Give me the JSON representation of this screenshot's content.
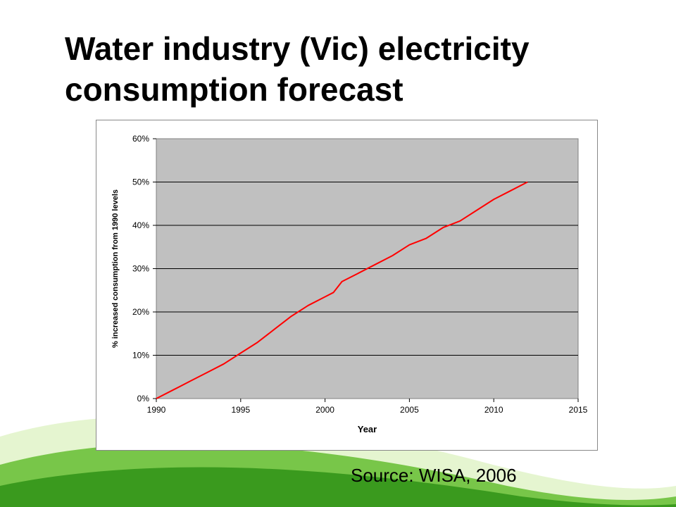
{
  "slide": {
    "title_line1": "Water industry (Vic) electricity",
    "title_line2": "consumption forecast",
    "source": "Source: WISA, 2006"
  },
  "colors": {
    "plot_background": "#c0c0c0",
    "series_line": "#ff0000",
    "swoosh_green": "#4fb82a",
    "swoosh_light": "#c8e8a0"
  },
  "chart_data": {
    "type": "line",
    "title": "",
    "xlabel": "Year",
    "ylabel": "% increased consumption from 1990 levels",
    "xlim": [
      1990,
      2015
    ],
    "ylim": [
      0,
      60
    ],
    "xticks": [
      "1990",
      "1995",
      "2000",
      "2005",
      "2010",
      "2015"
    ],
    "yticks": [
      "0%",
      "10%",
      "20%",
      "30%",
      "40%",
      "50%",
      "60%"
    ],
    "grid": "horizontal",
    "legend": "none",
    "series": [
      {
        "x": [
          1990,
          1991,
          1992,
          1993,
          1994,
          1995,
          1996,
          1997,
          1998,
          1999,
          2000,
          2000.5,
          2001,
          2002,
          2003,
          2004,
          2005,
          2006,
          2007,
          2008,
          2009,
          2010,
          2011,
          2012
        ],
        "values": [
          0,
          2,
          4,
          6,
          8,
          10.5,
          13,
          16,
          19,
          21.5,
          23.5,
          24.5,
          27,
          29,
          31,
          33,
          35.5,
          37,
          39.5,
          41,
          43.5,
          46,
          48,
          50
        ]
      }
    ]
  }
}
